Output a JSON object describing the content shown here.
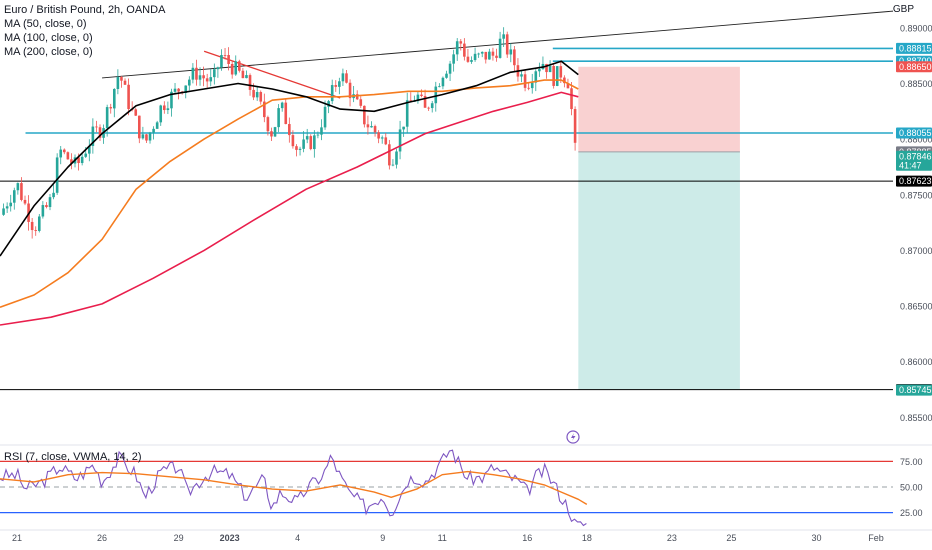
{
  "legend": {
    "symbol": "Euro / British Pound, 2h, OANDA",
    "ma50": "MA (50, close, 0)",
    "ma100": "MA (100, close, 0)",
    "ma200": "MA (200, close, 0)"
  },
  "rsi_legend": "RSI (7, close, VWMA, 14, 2)",
  "currency": "GBP",
  "colors": {
    "up": "#26a69a",
    "down": "#ef5350",
    "ma50": "#000000",
    "ma100": "#f57c1f",
    "ma200": "#e91e4c",
    "level": "#26a7c7",
    "trend": "#222222",
    "red_trend": "#e53935",
    "rsi": "#7e57c2",
    "rsi_ma": "#f57c1f",
    "stop_zone": "#f8c9c9",
    "target_zone": "#c8e9e6"
  },
  "chart_data": [
    {
      "type": "candlestick",
      "ylim": [
        0.8527,
        0.8925
      ],
      "y_ticks": [
        0.85,
        0.855,
        0.86,
        0.865,
        0.87,
        0.875,
        0.88,
        0.885,
        0.89
      ],
      "y_tick_labels": [
        "0.85000",
        "0.85500",
        "0.86000",
        "0.86500",
        "0.87000",
        "0.87500",
        "0.88000",
        "0.88500",
        "0.89000"
      ],
      "x_ticks": [
        {
          "label": "21",
          "x": 0
        },
        {
          "label": "26",
          "x": 10
        },
        {
          "label": "29",
          "x": 19
        },
        {
          "label": "2023",
          "x": 25
        },
        {
          "label": "4",
          "x": 33
        },
        {
          "label": "9",
          "x": 43
        },
        {
          "label": "11",
          "x": 50
        },
        {
          "label": "16",
          "x": 60
        },
        {
          "label": "18",
          "x": 67
        },
        {
          "label": "23",
          "x": 77
        },
        {
          "label": "25",
          "x": 84
        },
        {
          "label": "30",
          "x": 94
        },
        {
          "label": "Feb",
          "x": 101
        }
      ],
      "x_range": [
        -2,
        103
      ],
      "price_path": [
        [
          -2,
          0.8732
        ],
        [
          0,
          0.876
        ],
        [
          2,
          0.872
        ],
        [
          4,
          0.8745
        ],
        [
          5,
          0.879
        ],
        [
          7,
          0.8775
        ],
        [
          9,
          0.8805
        ],
        [
          10,
          0.881
        ],
        [
          12,
          0.886
        ],
        [
          13,
          0.8835
        ],
        [
          15,
          0.8795
        ],
        [
          17,
          0.883
        ],
        [
          19,
          0.8845
        ],
        [
          21,
          0.886
        ],
        [
          23,
          0.885
        ],
        [
          24,
          0.8875
        ],
        [
          26,
          0.886
        ],
        [
          28,
          0.884
        ],
        [
          30,
          0.8805
        ],
        [
          31,
          0.883
        ],
        [
          33,
          0.879
        ],
        [
          35,
          0.88
        ],
        [
          37,
          0.884
        ],
        [
          38,
          0.886
        ],
        [
          40,
          0.883
        ],
        [
          41,
          0.8815
        ],
        [
          43,
          0.88
        ],
        [
          44,
          0.878
        ],
        [
          46,
          0.883
        ],
        [
          47,
          0.884
        ],
        [
          48,
          0.8825
        ],
        [
          50,
          0.886
        ],
        [
          51,
          0.887
        ],
        [
          52,
          0.889
        ],
        [
          53,
          0.887
        ],
        [
          55,
          0.8875
        ],
        [
          56,
          0.8875
        ],
        [
          57,
          0.889
        ],
        [
          58,
          0.8875
        ],
        [
          59,
          0.886
        ],
        [
          60,
          0.885
        ],
        [
          61,
          0.8865
        ],
        [
          62,
          0.887
        ],
        [
          63,
          0.8855
        ],
        [
          64,
          0.886
        ],
        [
          65,
          0.885
        ],
        [
          65.5,
          0.879
        ],
        [
          66,
          0.8788
        ]
      ],
      "ma50": [
        [
          -2,
          0.8695
        ],
        [
          2,
          0.874
        ],
        [
          6,
          0.8775
        ],
        [
          10,
          0.8805
        ],
        [
          14,
          0.883
        ],
        [
          18,
          0.884
        ],
        [
          22,
          0.8845
        ],
        [
          26,
          0.885
        ],
        [
          30,
          0.8845
        ],
        [
          34,
          0.8838
        ],
        [
          38,
          0.8827
        ],
        [
          42,
          0.8825
        ],
        [
          46,
          0.8833
        ],
        [
          50,
          0.884
        ],
        [
          54,
          0.8848
        ],
        [
          58,
          0.886
        ],
        [
          62,
          0.8865
        ],
        [
          64,
          0.887
        ],
        [
          66,
          0.8858
        ]
      ],
      "ma100": [
        [
          -2,
          0.8649
        ],
        [
          2,
          0.866
        ],
        [
          6,
          0.868
        ],
        [
          10,
          0.871
        ],
        [
          14,
          0.8755
        ],
        [
          18,
          0.878
        ],
        [
          22,
          0.88
        ],
        [
          26,
          0.8818
        ],
        [
          30,
          0.8835
        ],
        [
          34,
          0.8838
        ],
        [
          38,
          0.8838
        ],
        [
          42,
          0.884
        ],
        [
          46,
          0.8843
        ],
        [
          50,
          0.8843
        ],
        [
          54,
          0.8846
        ],
        [
          58,
          0.8848
        ],
        [
          62,
          0.8853
        ],
        [
          64,
          0.8853
        ],
        [
          66,
          0.8845
        ]
      ],
      "ma200": [
        [
          -2,
          0.8633
        ],
        [
          4,
          0.864
        ],
        [
          10,
          0.8652
        ],
        [
          16,
          0.8675
        ],
        [
          22,
          0.87
        ],
        [
          28,
          0.8728
        ],
        [
          34,
          0.8755
        ],
        [
          40,
          0.8775
        ],
        [
          44,
          0.879
        ],
        [
          48,
          0.8805
        ],
        [
          52,
          0.8815
        ],
        [
          56,
          0.8825
        ],
        [
          60,
          0.8833
        ],
        [
          64,
          0.8842
        ],
        [
          66,
          0.8838
        ]
      ],
      "levels": [
        {
          "price": 0.88815,
          "color": "#26a7c7"
        },
        {
          "price": 0.887,
          "color": "#26a7c7"
        },
        {
          "price": 0.88055,
          "color": "#26a7c7"
        },
        {
          "price": 0.87623,
          "color": "#000000"
        },
        {
          "price": 0.8575,
          "color": "#000000"
        }
      ],
      "upper_trendline": [
        [
          10,
          0.8855
        ],
        [
          103,
          0.8915
        ]
      ],
      "red_trendline": [
        [
          22,
          0.8879
        ],
        [
          38,
          0.8837
        ]
      ],
      "position": {
        "x_start": 66,
        "x_end": 85,
        "entry": 0.87885,
        "stop": 0.8865,
        "target": 0.8575
      },
      "price_labels": [
        {
          "text": "0.88815",
          "price": 0.88815,
          "bg": "#26a7c7",
          "fg": "#ffffff"
        },
        {
          "text": "0.88700",
          "price": 0.887,
          "bg": "#26a7c7",
          "fg": "#ffffff"
        },
        {
          "text": "0.88650",
          "price": 0.8865,
          "bg": "#ef5350",
          "fg": "#ffffff"
        },
        {
          "text": "0.88055",
          "price": 0.88055,
          "bg": "#26a7c7",
          "fg": "#ffffff"
        },
        {
          "text": "0.87885",
          "price": 0.87885,
          "bg": "#787b86",
          "fg": "#ffffff"
        },
        {
          "text": "0.87846",
          "price": 0.87846,
          "bg": "#26a69a",
          "fg": "#ffffff",
          "sub": "41:47"
        },
        {
          "text": "0.87623",
          "price": 0.87623,
          "bg": "#000000",
          "fg": "#ffffff"
        },
        {
          "text": "0.85750",
          "price": 0.8575,
          "bg": "#000000",
          "fg": "#ffffff"
        },
        {
          "text": "0.85745",
          "price": 0.85745,
          "bg": "#26a69a",
          "fg": "#ffffff"
        }
      ]
    },
    {
      "type": "line",
      "name": "RSI (7, close, VWMA, 14, 2)",
      "ylim": [
        10,
        90
      ],
      "y_ticks": [
        75,
        50,
        25
      ],
      "y_tick_labels": [
        "75.00",
        "50.00",
        "25.00"
      ],
      "bands": {
        "upper": 75,
        "middle": 50,
        "lower": 25
      },
      "rsi_path": [
        [
          -2,
          60
        ],
        [
          0,
          62
        ],
        [
          1,
          48
        ],
        [
          3,
          55
        ],
        [
          5,
          70
        ],
        [
          7,
          58
        ],
        [
          9,
          72
        ],
        [
          10,
          55
        ],
        [
          12,
          78
        ],
        [
          14,
          62
        ],
        [
          15,
          40
        ],
        [
          17,
          65
        ],
        [
          19,
          70
        ],
        [
          20,
          44
        ],
        [
          22,
          60
        ],
        [
          23,
          65
        ],
        [
          25,
          62
        ],
        [
          27,
          40
        ],
        [
          29,
          58
        ],
        [
          30,
          30
        ],
        [
          31,
          45
        ],
        [
          33,
          35
        ],
        [
          34,
          48
        ],
        [
          36,
          62
        ],
        [
          37,
          80
        ],
        [
          38,
          60
        ],
        [
          39,
          45
        ],
        [
          41,
          30
        ],
        [
          43,
          42
        ],
        [
          44,
          25
        ],
        [
          46,
          58
        ],
        [
          47,
          60
        ],
        [
          48,
          55
        ],
        [
          50,
          75
        ],
        [
          51,
          88
        ],
        [
          53,
          58
        ],
        [
          55,
          60
        ],
        [
          56,
          70
        ],
        [
          57,
          64
        ],
        [
          59,
          55
        ],
        [
          60,
          45
        ],
        [
          61,
          60
        ],
        [
          62,
          66
        ],
        [
          63,
          55
        ],
        [
          64,
          40
        ],
        [
          65,
          28
        ],
        [
          65.5,
          15
        ],
        [
          66,
          12
        ],
        [
          67,
          15
        ]
      ],
      "rsi_ma_path": [
        [
          -2,
          58
        ],
        [
          2,
          55
        ],
        [
          6,
          62
        ],
        [
          10,
          64
        ],
        [
          14,
          63
        ],
        [
          18,
          60
        ],
        [
          22,
          57
        ],
        [
          26,
          52
        ],
        [
          30,
          48
        ],
        [
          34,
          46
        ],
        [
          38,
          52
        ],
        [
          42,
          45
        ],
        [
          44,
          40
        ],
        [
          47,
          48
        ],
        [
          50,
          62
        ],
        [
          53,
          65
        ],
        [
          56,
          62
        ],
        [
          59,
          58
        ],
        [
          62,
          52
        ],
        [
          64,
          45
        ],
        [
          66,
          38
        ],
        [
          67,
          33
        ]
      ]
    }
  ]
}
